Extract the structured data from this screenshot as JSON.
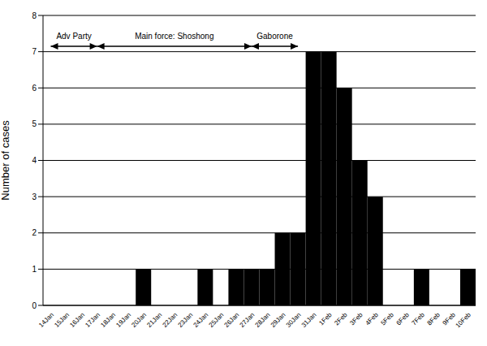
{
  "chart_data": {
    "type": "bar",
    "ylabel": "Number of cases",
    "categories": [
      "14Jan",
      "15Jan",
      "16Jan",
      "17Jan",
      "18Jan",
      "19Jan",
      "20Jan",
      "21Jan",
      "22Jan",
      "23Jan",
      "24Jan",
      "25Jan",
      "26Jan",
      "27Jan",
      "28Jan",
      "29Jan",
      "30Jan",
      "31Jan",
      "1Feb",
      "2Feb",
      "3Feb",
      "4Feb",
      "5Feb",
      "6Feb",
      "7Feb",
      "8Feb",
      "9Feb",
      "10Feb"
    ],
    "values": [
      0,
      0,
      0,
      0,
      0,
      0,
      1,
      0,
      0,
      0,
      1,
      0,
      1,
      1,
      1,
      2,
      2,
      7,
      7,
      6,
      4,
      3,
      0,
      0,
      1,
      0,
      0,
      1
    ],
    "color": "#000000",
    "ylim": [
      0,
      8
    ],
    "yticks": [
      0,
      1,
      2,
      3,
      4,
      5,
      6,
      7,
      8
    ],
    "grid": true,
    "annotations": [
      {
        "text": "Adv Party",
        "from": "14Jan",
        "to": "17Jan"
      },
      {
        "text": "Main force: Shoshong",
        "from": "17Jan",
        "to": "27Jan"
      },
      {
        "text": "Gaborone",
        "from": "27Jan",
        "to": "30Jan"
      }
    ]
  }
}
